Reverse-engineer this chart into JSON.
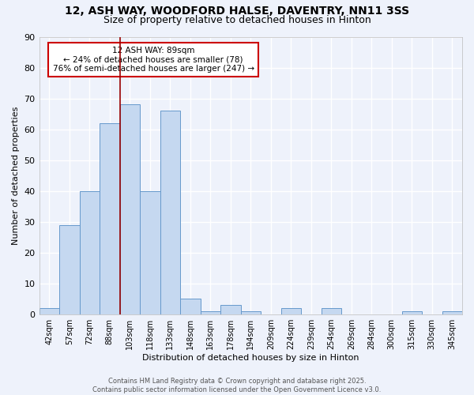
{
  "title1": "12, ASH WAY, WOODFORD HALSE, DAVENTRY, NN11 3SS",
  "title2": "Size of property relative to detached houses in Hinton",
  "categories": [
    "42sqm",
    "57sqm",
    "72sqm",
    "88sqm",
    "103sqm",
    "118sqm",
    "133sqm",
    "148sqm",
    "163sqm",
    "178sqm",
    "194sqm",
    "209sqm",
    "224sqm",
    "239sqm",
    "254sqm",
    "269sqm",
    "284sqm",
    "300sqm",
    "315sqm",
    "330sqm",
    "345sqm"
  ],
  "values": [
    2,
    29,
    40,
    62,
    68,
    40,
    66,
    5,
    1,
    3,
    1,
    0,
    2,
    0,
    2,
    0,
    0,
    0,
    1,
    0,
    1
  ],
  "bar_color": "#c5d8f0",
  "bar_edge_color": "#6699cc",
  "ylabel": "Number of detached properties",
  "xlabel": "Distribution of detached houses by size in Hinton",
  "ylim": [
    0,
    90
  ],
  "yticks": [
    0,
    10,
    20,
    30,
    40,
    50,
    60,
    70,
    80,
    90
  ],
  "vline_x": 3.5,
  "vline_color": "#990000",
  "annotation_text": "12 ASH WAY: 89sqm\n← 24% of detached houses are smaller (78)\n76% of semi-detached houses are larger (247) →",
  "annotation_box_color": "#ffffff",
  "annotation_box_edge": "#cc0000",
  "footer1": "Contains HM Land Registry data © Crown copyright and database right 2025.",
  "footer2": "Contains public sector information licensed under the Open Government Licence v3.0.",
  "bg_color": "#eef2fb",
  "grid_color": "#ffffff",
  "title_fontsize": 10,
  "subtitle_fontsize": 9
}
